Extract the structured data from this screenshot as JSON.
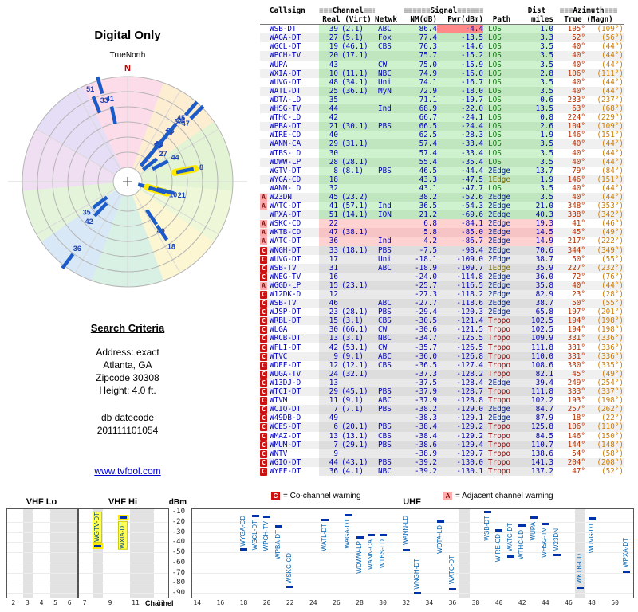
{
  "title": "Digital Only",
  "radar": {
    "north_label": "N",
    "true_north_label": "TrueNorth",
    "highlight_channels": [
      8,
      10
    ]
  },
  "search_criteria": {
    "heading": "Search Criteria",
    "lines": [
      "Address: exact",
      "Atlanta, GA",
      "Zipcode 30308",
      "Height: 4.0 ft."
    ],
    "db_label": "db datecode",
    "db_value": "201111101054"
  },
  "link": {
    "text": "www.tvfool.com"
  },
  "table": {
    "headers": {
      "callsign": "Callsign",
      "channel_deco_l": "≡≡≡",
      "channel_label": "Channel",
      "channel_deco_r": "≡≡≡",
      "signal_deco_l": "≡≡≡≡≡≡",
      "signal_label": "Signal",
      "signal_deco_r": "≡≡≡≡≡≡",
      "dist": "Dist",
      "azimuth_deco_l": "≡≡≡",
      "azimuth_label": "Azimuth",
      "azimuth_deco_r": "≡≡≡",
      "real_virt": "Real (Virt)",
      "netwk": "Netwk",
      "nm": "NM(dB)",
      "pwr": "Pwr(dBm)",
      "path": "Path",
      "miles": "miles",
      "true_magn": "True (Magn)"
    },
    "row_fields": [
      "warning",
      "callsign",
      "real",
      "virt",
      "netwk",
      "nm_db",
      "pwr_dbm",
      "path",
      "dist_miles",
      "azimuth_true",
      "azimuth_magn",
      "flag"
    ],
    "rows": [
      [
        "",
        "WSB-DT",
        "39",
        "(2.1)",
        "ABC",
        "86.4",
        "-4.4",
        "LOS",
        "1.0",
        "105°",
        "(109°)",
        "OL"
      ],
      [
        "",
        "WAGA-DT",
        "27",
        "(5.1)",
        "Fox",
        "77.4",
        "-13.5",
        "LOS",
        "3.3",
        "52°",
        "(56°)"
      ],
      [
        "",
        "WGCL-DT",
        "19",
        "(46.1)",
        "CBS",
        "76.3",
        "-14.6",
        "LOS",
        "3.5",
        "40°",
        "(44°)"
      ],
      [
        "",
        "WPCH-TV",
        "20",
        "(17.1)",
        "",
        "75.7",
        "-15.2",
        "LOS",
        "3.5",
        "40°",
        "(44°)"
      ],
      [
        "",
        "WUPA",
        "43",
        "",
        "CW",
        "75.0",
        "-15.9",
        "LOS",
        "3.5",
        "40°",
        "(44°)"
      ],
      [
        "",
        "WXIA-DT",
        "10",
        "(11.1)",
        "NBC",
        "74.9",
        "-16.0",
        "LOS",
        "2.8",
        "106°",
        "(111°)"
      ],
      [
        "",
        "WUVG-DT",
        "48",
        "(34.1)",
        "Uni",
        "74.1",
        "-16.7",
        "LOS",
        "3.5",
        "40°",
        "(44°)"
      ],
      [
        "",
        "WATL-DT",
        "25",
        "(36.1)",
        "MyN",
        "72.9",
        "-18.0",
        "LOS",
        "3.5",
        "40°",
        "(44°)"
      ],
      [
        "",
        "WDTA-LD",
        "35",
        "",
        "",
        "71.1",
        "-19.7",
        "LOS",
        "0.6",
        "233°",
        "(237°)"
      ],
      [
        "",
        "WHSG-TV",
        "44",
        "",
        "Ind",
        "68.9",
        "-22.0",
        "LOS",
        "13.5",
        "63°",
        "(68°)"
      ],
      [
        "",
        "WTHC-LD",
        "42",
        "",
        "",
        "66.7",
        "-24.1",
        "LOS",
        "0.8",
        "224°",
        "(229°)"
      ],
      [
        "",
        "WPBA-DT",
        "21",
        "(30.1)",
        "PBS",
        "66.5",
        "-24.4",
        "LOS",
        "2.6",
        "104°",
        "(109°)"
      ],
      [
        "",
        "WIRE-CD",
        "40",
        "",
        "",
        "62.5",
        "-28.3",
        "LOS",
        "1.9",
        "146°",
        "(151°)"
      ],
      [
        "",
        "WANN-CA",
        "29",
        "(31.1)",
        "",
        "57.4",
        "-33.4",
        "LOS",
        "3.5",
        "40°",
        "(44°)"
      ],
      [
        "",
        "WTBS-LD",
        "30",
        "",
        "",
        "57.4",
        "-33.4",
        "LOS",
        "3.5",
        "40°",
        "(44°)"
      ],
      [
        "",
        "WDWW-LP",
        "28",
        "(28.1)",
        "",
        "55.4",
        "-35.4",
        "LOS",
        "3.5",
        "40°",
        "(44°)"
      ],
      [
        "",
        "WGTV-DT",
        "8",
        "(8.1)",
        "PBS",
        "46.5",
        "-44.4",
        "2Edge",
        "13.7",
        "79°",
        "(84°)"
      ],
      [
        "",
        "WYGA-CD",
        "18",
        "",
        "",
        "43.3",
        "-47.5",
        "1Edge",
        "1.9",
        "146°",
        "(151°)"
      ],
      [
        "",
        "WANN-LD",
        "32",
        "",
        "",
        "43.1",
        "-47.7",
        "LOS",
        "3.5",
        "40°",
        "(44°)"
      ],
      [
        "A",
        "W23DN",
        "45",
        "(23.2)",
        "",
        "38.2",
        "-52.6",
        "2Edge",
        "3.5",
        "40°",
        "(44°)"
      ],
      [
        "A",
        "WATC-DT",
        "41",
        "(57.1)",
        "Ind",
        "36.5",
        "-54.3",
        "2Edge",
        "21.0",
        "348°",
        "(353°)"
      ],
      [
        "",
        "WPXA-DT",
        "51",
        "(14.1)",
        "ION",
        "21.2",
        "-69.6",
        "2Edge",
        "40.3",
        "338°",
        "(342°)"
      ],
      [
        "A",
        "WSKC-CD",
        "22",
        "",
        "",
        "6.8",
        "-84.1",
        "2Edge",
        "19.3",
        "41°",
        "(46°)"
      ],
      [
        "A",
        "WKTB-CD",
        "47",
        "(38.1)",
        "",
        "5.8",
        "-85.0",
        "2Edge",
        "14.5",
        "45°",
        "(49°)"
      ],
      [
        "A",
        "WATC-DT",
        "36",
        "",
        "Ind",
        "4.2",
        "-86.7",
        "2Edge",
        "14.9",
        "217°",
        "(222°)"
      ],
      [
        "C",
        "WNGH-DT",
        "33",
        "(18.1)",
        "PBS",
        "-7.5",
        "-98.4",
        "2Edge",
        "70.6",
        "344°",
        "(349°)"
      ],
      [
        "C",
        "WUVG-DT",
        "17",
        "",
        "Uni",
        "-18.1",
        "-109.0",
        "2Edge",
        "38.7",
        "50°",
        "(55°)"
      ],
      [
        "C",
        "WSB-TV",
        "31",
        "",
        "ABC",
        "-18.9",
        "-109.7",
        "1Edge",
        "35.9",
        "227°",
        "(232°)"
      ],
      [
        "C",
        "WNEG-TV",
        "16",
        "",
        "",
        "-24.0",
        "-114.8",
        "2Edge",
        "36.0",
        "72°",
        "(76°)"
      ],
      [
        "A",
        "WGGD-LP",
        "15",
        "(23.1)",
        "",
        "-25.7",
        "-116.5",
        "2Edge",
        "35.8",
        "40°",
        "(44°)"
      ],
      [
        "C",
        "W12DK-D",
        "12",
        "",
        "",
        "-27.3",
        "-118.2",
        "2Edge",
        "82.9",
        "23°",
        "(28°)"
      ],
      [
        "C",
        "WSB-TV",
        "46",
        "",
        "ABC",
        "-27.7",
        "-118.6",
        "2Edge",
        "38.7",
        "50°",
        "(55°)"
      ],
      [
        "C",
        "WJSP-DT",
        "23",
        "(28.1)",
        "PBS",
        "-29.4",
        "-120.3",
        "2Edge",
        "65.8",
        "197°",
        "(201°)"
      ],
      [
        "C",
        "WRBL-DT",
        "15",
        "(3.1)",
        "CBS",
        "-30.5",
        "-121.4",
        "Tropo",
        "102.5",
        "194°",
        "(198°)"
      ],
      [
        "C",
        "WLGA",
        "30",
        "(66.1)",
        "CW",
        "-30.6",
        "-121.5",
        "Tropo",
        "102.5",
        "194°",
        "(198°)"
      ],
      [
        "C",
        "WRCB-DT",
        "13",
        "(3.1)",
        "NBC",
        "-34.7",
        "-125.5",
        "Tropo",
        "109.9",
        "331°",
        "(336°)"
      ],
      [
        "C",
        "WFLI-DT",
        "42",
        "(53.1)",
        "CW",
        "-35.7",
        "-126.5",
        "Tropo",
        "111.8",
        "331°",
        "(336°)"
      ],
      [
        "C",
        "WTVC",
        "9",
        "(9.1)",
        "ABC",
        "-36.0",
        "-126.8",
        "Tropo",
        "110.0",
        "331°",
        "(336°)"
      ],
      [
        "C",
        "WDEF-DT",
        "12",
        "(12.1)",
        "CBS",
        "-36.5",
        "-127.4",
        "Tropo",
        "108.6",
        "330°",
        "(335°)"
      ],
      [
        "C",
        "WUGA-TV",
        "24",
        "(32.1)",
        "",
        "-37.3",
        "-128.2",
        "Tropo",
        "82.1",
        "45°",
        "(49°)"
      ],
      [
        "C",
        "W13DJ-D",
        "13",
        "",
        "",
        "-37.5",
        "-128.4",
        "2Edge",
        "39.4",
        "249°",
        "(254°)"
      ],
      [
        "C",
        "WTCI-DT",
        "29",
        "(45.1)",
        "PBS",
        "-37.9",
        "-128.7",
        "Tropo",
        "111.8",
        "333°",
        "(337°)"
      ],
      [
        "C",
        "WTVM",
        "11",
        "(9.1)",
        "ABC",
        "-37.9",
        "-128.8",
        "Tropo",
        "102.2",
        "193°",
        "(198°)"
      ],
      [
        "C",
        "WCIQ-DT",
        "7",
        "(7.1)",
        "PBS",
        "-38.2",
        "-129.0",
        "2Edge",
        "84.7",
        "257°",
        "(262°)"
      ],
      [
        "C",
        "W49DB-D",
        "49",
        "",
        "",
        "-38.3",
        "-129.1",
        "2Edge",
        "87.9",
        "18°",
        "(22°)"
      ],
      [
        "C",
        "WCES-DT",
        "6",
        "(20.1)",
        "PBS",
        "-38.4",
        "-129.2",
        "Tropo",
        "125.8",
        "106°",
        "(110°)"
      ],
      [
        "C",
        "WMAZ-DT",
        "13",
        "(13.1)",
        "CBS",
        "-38.4",
        "-129.2",
        "Tropo",
        "84.5",
        "146°",
        "(150°)"
      ],
      [
        "C",
        "WMUM-DT",
        "7",
        "(29.1)",
        "PBS",
        "-38.6",
        "-129.4",
        "Tropo",
        "110.7",
        "144°",
        "(148°)"
      ],
      [
        "C",
        "WNTV",
        "9",
        "",
        "",
        "-38.9",
        "-129.7",
        "Tropo",
        "138.6",
        "54°",
        "(58°)"
      ],
      [
        "C",
        "WGIQ-DT",
        "44",
        "(43.1)",
        "PBS",
        "-39.2",
        "-130.0",
        "Tropo",
        "141.3",
        "204°",
        "(208°)"
      ],
      [
        "C",
        "WYFF-DT",
        "36",
        "(4.1)",
        "NBC",
        "-39.2",
        "-130.1",
        "Tropo",
        "137.2",
        "47°",
        "(52°)"
      ]
    ]
  },
  "spectrum": {
    "legend": {
      "c_symbol": "C",
      "c_text": "= Co-channel warning",
      "a_symbol": "A",
      "a_text": "= Adjacent channel warning"
    },
    "vhf_lo_label": "VHF Lo",
    "vhf_hi_label": "VHF Hi",
    "uhf_label": "UHF",
    "dbm_label": "dBm",
    "channel_axis_label": "Channel",
    "y_ticks": [
      "-10",
      "-20",
      "-30",
      "-40",
      "-50",
      "-60",
      "-70",
      "-80",
      "-90"
    ],
    "axis": {
      "vhf_lo": [
        2,
        3,
        4,
        5,
        6
      ],
      "vhf_hi": [
        7,
        9,
        11,
        13
      ],
      "uhf": [
        14,
        16,
        18,
        20,
        22,
        24,
        26,
        28,
        30,
        32,
        34,
        36,
        38,
        40,
        42,
        44,
        46,
        48,
        50
      ]
    },
    "shaded": [
      {
        "panel": "lo",
        "from": 2.7,
        "to": 3.4
      },
      {
        "panel": "lo",
        "from": 4.6,
        "to": 6.5
      },
      {
        "panel": "hi",
        "from": 7.6,
        "to": 8.45
      },
      {
        "panel": "hi",
        "from": 10.55,
        "to": 12.45
      },
      {
        "panel": "uhf",
        "from": 36.55,
        "to": 37.45
      },
      {
        "panel": "uhf",
        "from": 46.55,
        "to": 47.45
      }
    ],
    "highlight_callsigns": [
      "WGTV-DT",
      "WXIA-DT"
    ]
  },
  "colors": {
    "row_strong": "#cdf2cd",
    "row_weak": "#ffd2d2",
    "row_very_weak": "#e9e9e9",
    "overload_cell": "#ff8888",
    "co_channel": "#cc1111",
    "adjacent_channel": "#ffaaaa",
    "callsign_text": "#0000bb",
    "azimuth_true_text": "#b33000",
    "azimuth_magn_text": "#cc7a00",
    "highlight": "#ffff55",
    "tick_blue": "#0033aa"
  }
}
